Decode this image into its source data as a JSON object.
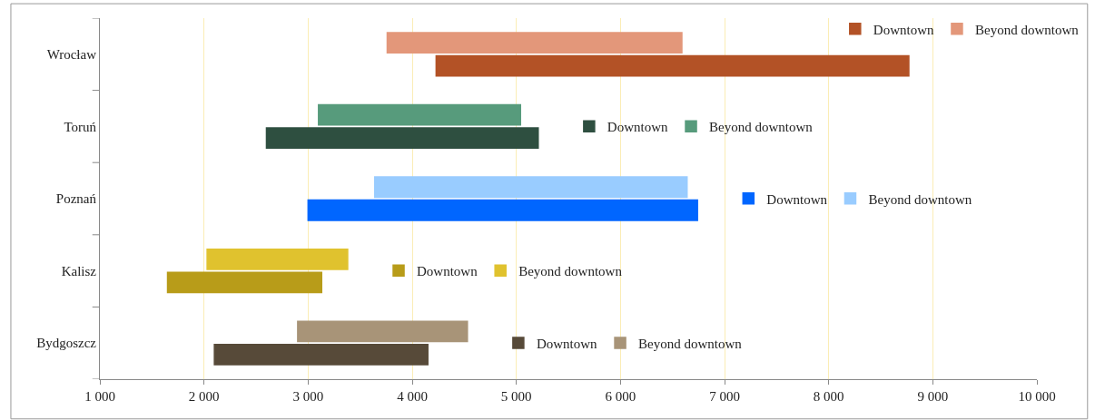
{
  "chart_data": {
    "type": "bar",
    "orientation": "horizontal",
    "categories": [
      "Wrocław",
      "Toruń",
      "Poznań",
      "Kalisz",
      "Bydgoszcz"
    ],
    "series": [
      {
        "name": "Downtown",
        "color": "#b35226",
        "base": [
          4230,
          null,
          null,
          null,
          null
        ],
        "values": [
          4540,
          null,
          null,
          null,
          null
        ]
      },
      {
        "name": "Beyond downtown",
        "color": "#e3977a",
        "base": [
          3760,
          null,
          null,
          null,
          null
        ],
        "values": [
          2830,
          null,
          null,
          null,
          null
        ]
      },
      {
        "name": "Downtown",
        "color": "#2e4f40",
        "base": [
          null,
          2600,
          null,
          null,
          null
        ],
        "values": [
          null,
          2610,
          null,
          null,
          null
        ]
      },
      {
        "name": "Beyond downtown",
        "color": "#579b7c",
        "base": [
          null,
          3100,
          null,
          null,
          null
        ],
        "values": [
          null,
          1940,
          null,
          null,
          null
        ]
      },
      {
        "name": "Downtown",
        "color": "#0066ff",
        "base": [
          null,
          null,
          3000,
          null,
          null
        ],
        "values": [
          null,
          null,
          3740,
          null,
          null
        ]
      },
      {
        "name": "Beyond downtown",
        "color": "#99ccff",
        "base": [
          null,
          null,
          3640,
          null,
          null
        ],
        "values": [
          null,
          null,
          3000,
          null,
          null
        ]
      },
      {
        "name": "Downtown",
        "color": "#b89c19",
        "base": [
          null,
          null,
          null,
          1650,
          null
        ],
        "values": [
          null,
          null,
          null,
          1480,
          null
        ]
      },
      {
        "name": "Beyond downtown",
        "color": "#e0c22e",
        "base": [
          null,
          null,
          null,
          2030,
          null
        ],
        "values": [
          null,
          null,
          null,
          1350,
          null
        ]
      },
      {
        "name": "Downtown",
        "color": "#574a39",
        "base": [
          null,
          null,
          null,
          null,
          2100
        ],
        "values": [
          null,
          null,
          null,
          null,
          2050
        ]
      },
      {
        "name": "Beyond downtown",
        "color": "#a89478",
        "base": [
          null,
          null,
          null,
          null,
          2900
        ],
        "values": [
          null,
          null,
          null,
          null,
          1630
        ]
      }
    ],
    "xlim": [
      1000,
      10000
    ],
    "xticks": [
      {
        "value": 1000,
        "label": "1 000"
      },
      {
        "value": 2000,
        "label": "2 000"
      },
      {
        "value": 3000,
        "label": "3 000"
      },
      {
        "value": 4000,
        "label": "4 000"
      },
      {
        "value": 5000,
        "label": "5 000"
      },
      {
        "value": 6000,
        "label": "6 000"
      },
      {
        "value": 7000,
        "label": "7 000"
      },
      {
        "value": 8000,
        "label": "8 000"
      },
      {
        "value": 9000,
        "label": "9 000"
      },
      {
        "value": 10000,
        "label": "10 000"
      }
    ],
    "grid": "x",
    "legend": "right"
  }
}
